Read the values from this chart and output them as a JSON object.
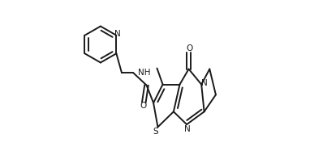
{
  "bg_color": "#ffffff",
  "line_color": "#1a1a1a",
  "line_width": 1.4,
  "figsize": [
    3.82,
    1.92
  ],
  "dpi": 100,
  "xlim": [
    0.0,
    1.0
  ],
  "ylim": [
    0.0,
    1.0
  ]
}
